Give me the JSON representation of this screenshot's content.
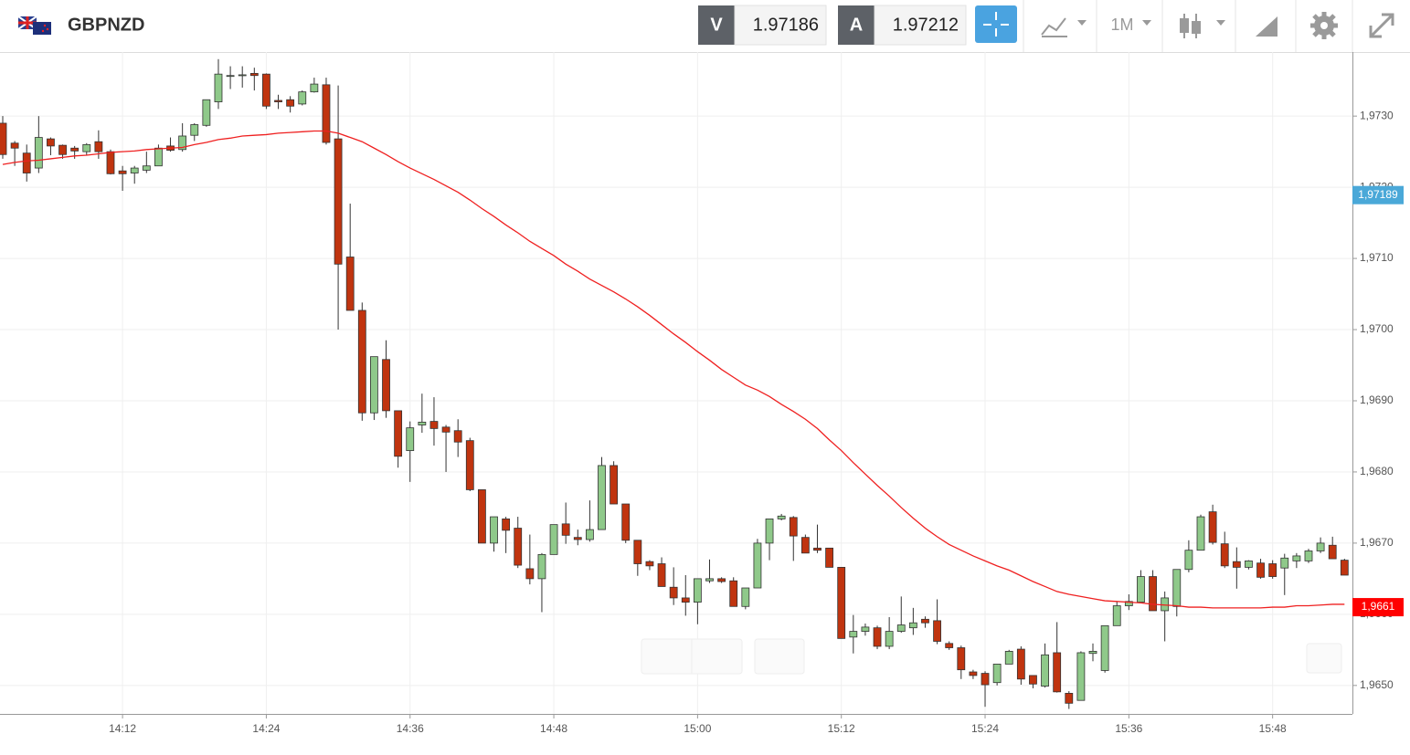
{
  "header": {
    "symbol": "GBPNZD",
    "bid_label": "V",
    "bid": 1.97186,
    "ask_label": "A",
    "ask": 1.97212,
    "timeframe": "1M"
  },
  "chart_data": {
    "type": "candlestick",
    "categories": [
      null,
      null,
      null,
      null,
      null,
      null,
      null,
      null,
      null,
      null,
      "14:12",
      null,
      null,
      null,
      null,
      null,
      null,
      null,
      null,
      null,
      null,
      null,
      "14:24",
      null,
      null,
      null,
      null,
      null,
      null,
      null,
      null,
      null,
      null,
      null,
      "14:36",
      null,
      null,
      null,
      null,
      null,
      null,
      null,
      null,
      null,
      null,
      null,
      "14:48",
      null,
      null,
      null,
      null,
      null,
      null,
      null,
      null,
      null,
      null,
      null,
      "15:00",
      null,
      null,
      null,
      null,
      null,
      null,
      null,
      null,
      null,
      null,
      null,
      "15:12",
      null,
      null,
      null,
      null,
      null,
      null,
      null,
      null,
      null,
      null,
      null,
      "15:24",
      null,
      null,
      null,
      null,
      null,
      null,
      null,
      null,
      null,
      null,
      null,
      "15:36",
      null,
      null,
      null,
      null,
      null,
      null,
      null,
      null,
      null,
      null,
      null,
      "15:48",
      null,
      null,
      null,
      null,
      null,
      null
    ],
    "open": [
      1.9729,
      1.97262,
      1.97248,
      1.97227,
      1.97268,
      1.97259,
      1.97255,
      1.9725,
      1.97264,
      1.9725,
      1.97223,
      1.9722,
      1.97224,
      1.9723,
      1.97258,
      1.97253,
      1.97273,
      1.97287,
      1.9732,
      1.97356,
      1.97357,
      1.9736,
      1.97359,
      1.97322,
      1.97323,
      1.97317,
      1.97334,
      1.97344,
      1.97268,
      1.97102,
      1.97027,
      1.96883,
      1.96958,
      1.96886,
      1.9683,
      1.96866,
      1.96871,
      1.96863,
      1.96858,
      1.96844,
      1.96775,
      1.967,
      1.96734,
      1.96721,
      1.96664,
      1.9665,
      1.96684,
      1.96727,
      1.96708,
      1.96705,
      1.96719,
      1.96809,
      1.96755,
      1.96704,
      1.96674,
      1.96671,
      1.96638,
      1.96623,
      1.96617,
      1.96647,
      1.9665,
      1.96647,
      1.96611,
      1.96637,
      1.967,
      1.96734,
      1.96736,
      1.96708,
      1.96693,
      1.96693,
      1.96666,
      1.96568,
      1.96576,
      1.96581,
      1.96555,
      1.96576,
      1.96581,
      1.96593,
      1.96591,
      1.96559,
      1.96553,
      1.96519,
      1.96517,
      1.96504,
      1.9653,
      1.96551,
      1.96514,
      1.96499,
      1.96546,
      1.96489,
      1.96479,
      1.96545,
      1.96521,
      1.96584,
      1.96612,
      1.96617,
      1.96653,
      1.96605,
      1.96611,
      1.96663,
      1.9669,
      1.96744,
      1.96699,
      1.96674,
      1.96666,
      1.96672,
      1.96671,
      1.96665,
      1.96675,
      1.96675,
      1.96689,
      1.96697,
      1.96676
    ],
    "high": [
      1.973,
      1.97265,
      1.9726,
      1.973,
      1.9727,
      1.9726,
      1.97258,
      1.97262,
      1.9728,
      1.97253,
      1.9723,
      1.9723,
      1.9725,
      1.9726,
      1.9727,
      1.9729,
      1.9729,
      1.97323,
      1.9738,
      1.9737,
      1.9737,
      1.97368,
      1.9736,
      1.9733,
      1.97328,
      1.97336,
      1.97354,
      1.97354,
      1.97343,
      1.97177,
      1.97038,
      1.96962,
      1.96985,
      1.96886,
      1.96871,
      1.9691,
      1.96905,
      1.96866,
      1.96874,
      1.96848,
      1.96775,
      1.96737,
      1.96737,
      1.96737,
      1.96712,
      1.96686,
      1.96726,
      1.96757,
      1.96719,
      1.9676,
      1.96821,
      1.96815,
      1.96755,
      1.96704,
      1.96676,
      1.9668,
      1.96666,
      1.96655,
      1.9665,
      1.96677,
      1.96652,
      1.96652,
      1.96637,
      1.96706,
      1.96734,
      1.96741,
      1.96738,
      1.96712,
      1.96726,
      1.96693,
      1.96666,
      1.96599,
      1.96587,
      1.96584,
      1.96596,
      1.96625,
      1.96609,
      1.96597,
      1.96621,
      1.96562,
      1.96556,
      1.96522,
      1.9652,
      1.9653,
      1.9655,
      1.96555,
      1.96514,
      1.96559,
      1.96589,
      1.96492,
      1.96548,
      1.96559,
      1.96584,
      1.96618,
      1.96628,
      1.96662,
      1.96662,
      1.96632,
      1.96663,
      1.96704,
      1.9674,
      1.96754,
      1.96716,
      1.96694,
      1.96676,
      1.96678,
      1.96676,
      1.96685,
      1.96686,
      1.96692,
      1.96708,
      1.96709,
      1.96678
    ],
    "low": [
      1.9724,
      1.9723,
      1.97208,
      1.9722,
      1.97245,
      1.9724,
      1.9724,
      1.97245,
      1.9724,
      1.97218,
      1.97195,
      1.97205,
      1.9722,
      1.9723,
      1.9725,
      1.9725,
      1.97265,
      1.97285,
      1.9731,
      1.97338,
      1.9734,
      1.97336,
      1.9731,
      1.9731,
      1.97305,
      1.97315,
      1.97333,
      1.9726,
      1.97,
      1.97027,
      1.96872,
      1.96873,
      1.96876,
      1.96806,
      1.96786,
      1.96855,
      1.96837,
      1.968,
      1.96821,
      1.96773,
      1.967,
      1.96688,
      1.96686,
      1.96665,
      1.96642,
      1.96603,
      1.96684,
      1.96699,
      1.96697,
      1.96702,
      1.96719,
      1.96755,
      1.967,
      1.96654,
      1.96662,
      1.96639,
      1.96613,
      1.96598,
      1.96586,
      1.96644,
      1.96644,
      1.96611,
      1.96607,
      1.96637,
      1.96676,
      1.96732,
      1.96675,
      1.96686,
      1.96686,
      1.96666,
      1.96566,
      1.96545,
      1.9657,
      1.96551,
      1.96551,
      1.96574,
      1.96571,
      1.96581,
      1.96558,
      1.9655,
      1.96509,
      1.96509,
      1.9647,
      1.965,
      1.9653,
      1.96501,
      1.96496,
      1.96497,
      1.9649,
      1.96467,
      1.96479,
      1.96534,
      1.96518,
      1.96584,
      1.96606,
      1.96617,
      1.96605,
      1.96562,
      1.96597,
      1.96659,
      1.9669,
      1.96698,
      1.96665,
      1.96636,
      1.96663,
      1.9665,
      1.9665,
      1.96627,
      1.96665,
      1.96672,
      1.96686,
      1.96678,
      1.96655
    ],
    "close": [
      1.97246,
      1.97255,
      1.9722,
      1.9727,
      1.97258,
      1.97246,
      1.97251,
      1.9726,
      1.9725,
      1.97219,
      1.97219,
      1.97227,
      1.9723,
      1.97255,
      1.97252,
      1.97272,
      1.97288,
      1.97323,
      1.97359,
      1.97357,
      1.97358,
      1.97357,
      1.97314,
      1.9732,
      1.97314,
      1.97334,
      1.97345,
      1.97263,
      1.97092,
      1.97027,
      1.96883,
      1.96962,
      1.96886,
      1.96822,
      1.96862,
      1.9687,
      1.96861,
      1.96856,
      1.96842,
      1.96775,
      1.967,
      1.96737,
      1.96718,
      1.96669,
      1.9665,
      1.96684,
      1.96726,
      1.96711,
      1.96705,
      1.96719,
      1.96809,
      1.96755,
      1.96704,
      1.96671,
      1.96668,
      1.96639,
      1.96623,
      1.96617,
      1.9665,
      1.9665,
      1.96646,
      1.96611,
      1.96637,
      1.967,
      1.96734,
      1.96738,
      1.9671,
      1.96686,
      1.9669,
      1.96666,
      1.96566,
      1.96576,
      1.96582,
      1.96555,
      1.96576,
      1.96585,
      1.96588,
      1.96588,
      1.96562,
      1.96553,
      1.96522,
      1.96514,
      1.96501,
      1.9653,
      1.96548,
      1.96509,
      1.96502,
      1.96543,
      1.96491,
      1.96475,
      1.96546,
      1.96548,
      1.96584,
      1.96612,
      1.96618,
      1.96653,
      1.96605,
      1.96623,
      1.96663,
      1.9669,
      1.96737,
      1.96701,
      1.96668,
      1.96666,
      1.96675,
      1.96652,
      1.96653,
      1.96679,
      1.96682,
      1.96689,
      1.967,
      1.96678,
      1.96655
    ],
    "up_color": "#8fc98a",
    "down_color": "#c0340f",
    "line": {
      "type": "line",
      "color": "#ef2020",
      "values": [
        1.97232,
        1.97235,
        1.97237,
        1.97238,
        1.9724,
        1.97242,
        1.97244,
        1.97245,
        1.97247,
        1.97249,
        1.9725,
        1.97251,
        1.97253,
        1.97254,
        1.97255,
        1.97256,
        1.9726,
        1.97263,
        1.97267,
        1.97269,
        1.97272,
        1.97273,
        1.97274,
        1.97276,
        1.97277,
        1.97278,
        1.97279,
        1.97279,
        1.97276,
        1.9727,
        1.97264,
        1.97255,
        1.97246,
        1.97236,
        1.97227,
        1.97219,
        1.97211,
        1.97202,
        1.97193,
        1.97182,
        1.9717,
        1.97159,
        1.97147,
        1.97136,
        1.97124,
        1.97114,
        1.97104,
        1.97092,
        1.97082,
        1.97071,
        1.97062,
        1.97053,
        1.97043,
        1.97032,
        1.9702,
        1.97007,
        1.96994,
        1.96982,
        1.96969,
        1.96957,
        1.96944,
        1.96933,
        1.96922,
        1.96915,
        1.96906,
        1.96895,
        1.96885,
        1.96874,
        1.96861,
        1.96845,
        1.9683,
        1.96813,
        1.96797,
        1.96781,
        1.96766,
        1.9675,
        1.96735,
        1.96721,
        1.96709,
        1.96698,
        1.9669,
        1.96682,
        1.96675,
        1.96668,
        1.96662,
        1.96654,
        1.96646,
        1.96639,
        1.96632,
        1.96628,
        1.96625,
        1.96622,
        1.96619,
        1.96618,
        1.96617,
        1.96616,
        1.96614,
        1.96613,
        1.96612,
        1.9661,
        1.9661,
        1.96609,
        1.96609,
        1.96609,
        1.96609,
        1.96609,
        1.9661,
        1.9661,
        1.96612,
        1.96612,
        1.96613,
        1.96614,
        1.96614
      ]
    },
    "ylim": [
      1.9646,
      1.9739
    ],
    "yticks": [
      {
        "value": 1.965,
        "label": "1,9650"
      },
      {
        "value": 1.966,
        "label": "1,9660"
      },
      {
        "value": 1.967,
        "label": "1,9670"
      },
      {
        "value": 1.968,
        "label": "1,9680"
      },
      {
        "value": 1.969,
        "label": "1,9690"
      },
      {
        "value": 1.97,
        "label": "1,9700"
      },
      {
        "value": 1.971,
        "label": "1,9710"
      },
      {
        "value": 1.972,
        "label": "1,9720"
      },
      {
        "value": 1.973,
        "label": "1,9730"
      }
    ],
    "grid": true,
    "markers": [
      {
        "value": 1.97189,
        "label": "1,97189",
        "color": "#4aa8d8"
      },
      {
        "value": 1.9661,
        "label": "1,9661",
        "color": "#ff0000"
      }
    ]
  }
}
